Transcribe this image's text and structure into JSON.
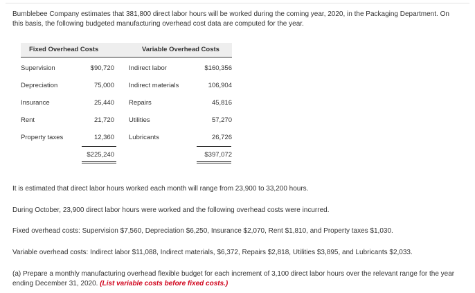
{
  "intro": "Bumblebee Company estimates that 381,800 direct labor hours will be worked during the coming year, 2020, in the Packaging Department. On this basis, the following budgeted manufacturing overhead cost data are computed for the year.",
  "table": {
    "fixed_header": "Fixed Overhead Costs",
    "variable_header": "Variable Overhead Costs",
    "rows": [
      {
        "fixed_label": "Supervision",
        "fixed_amount": "$90,720",
        "var_label": "Indirect labor",
        "var_amount": "$160,356"
      },
      {
        "fixed_label": "Depreciation",
        "fixed_amount": "75,000",
        "var_label": "Indirect materials",
        "var_amount": "106,904"
      },
      {
        "fixed_label": "Insurance",
        "fixed_amount": "25,440",
        "var_label": "Repairs",
        "var_amount": "45,816"
      },
      {
        "fixed_label": "Rent",
        "fixed_amount": "21,720",
        "var_label": "Utilities",
        "var_amount": "57,270"
      },
      {
        "fixed_label": "Property taxes",
        "fixed_amount": "12,360",
        "var_label": "Lubricants",
        "var_amount": "26,726"
      }
    ],
    "fixed_total": "$225,240",
    "variable_total": "$397,072"
  },
  "para1": "It is estimated that direct labor hours worked each month will range from 23,900 to 33,200 hours.",
  "para2": "During October, 23,900 direct labor hours were worked and the following overhead costs were incurred.",
  "para3": "Fixed overhead costs: Supervision $7,560, Depreciation $6,250, Insurance $2,070, Rent $1,810, and Property taxes $1,030.",
  "para4": "Variable overhead costs: Indirect labor $11,088, Indirect materials, $6,372, Repairs $2,818, Utilities $3,895, and Lubricants $2,033.",
  "question": {
    "text": "(a) Prepare a monthly manufacturing overhead flexible budget for each increment of 3,100 direct labor hours over the relevant range for the year ending December 31, 2020. ",
    "note": "(List variable costs before fixed costs.)"
  }
}
